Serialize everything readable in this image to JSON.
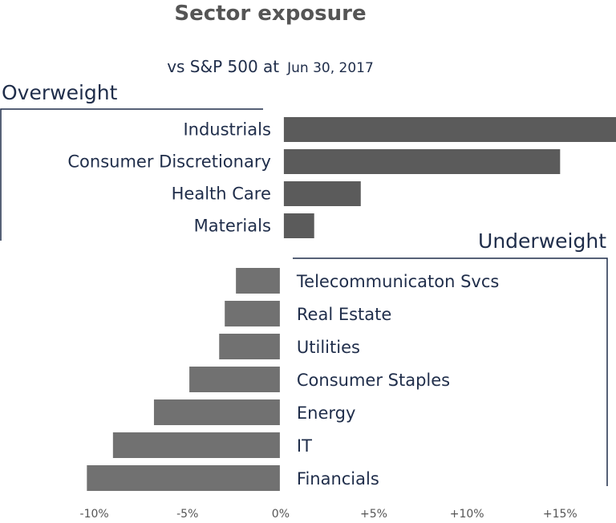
{
  "chart_data": {
    "type": "bar",
    "orientation": "horizontal",
    "title": "Sector exposure",
    "subtitle": "vs S&P 500 at",
    "subtitle_date": "Jun 30, 2017",
    "xlim": [
      -10.5,
      18
    ],
    "xticks": [
      -10,
      -5,
      0,
      5,
      10,
      15
    ],
    "xtick_labels": [
      "-10%",
      "-5%",
      "0%",
      "+5%",
      "+10%",
      "+15%"
    ],
    "overweight": {
      "label": "Overweight",
      "color": "#5b5b5b",
      "categories": [
        "Industrials",
        "Consumer Discretionary",
        "Health Care",
        "Materials"
      ],
      "values": [
        18.0,
        15.0,
        4.3,
        1.8
      ]
    },
    "underweight": {
      "label": "Underweight",
      "color": "#717171",
      "categories": [
        "Telecommunicaton Svcs",
        "Real Estate",
        "Utilities",
        "Consumer Staples",
        "Energy",
        "IT",
        "Financials"
      ],
      "values": [
        -2.4,
        -3.0,
        -3.3,
        -4.9,
        -6.8,
        -9.0,
        -10.4
      ]
    }
  }
}
